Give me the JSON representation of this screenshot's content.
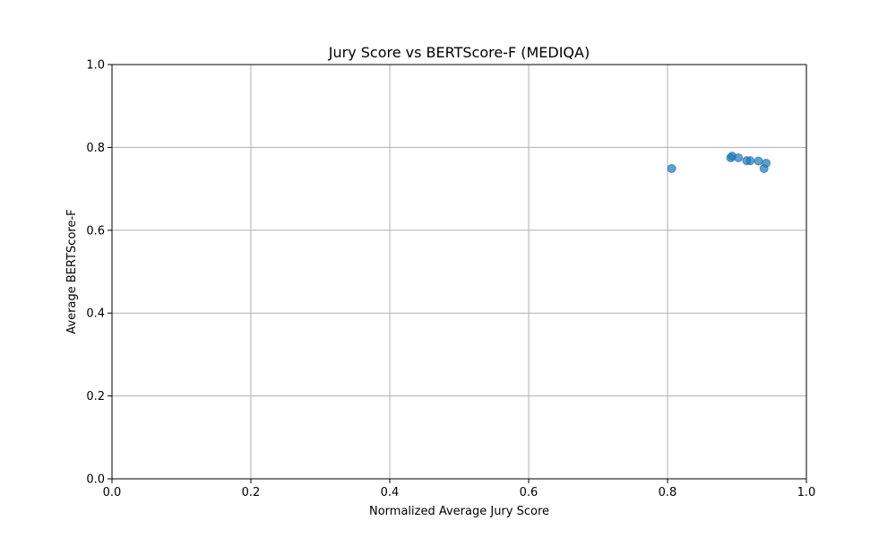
{
  "chart_data": {
    "type": "scatter",
    "title": "Jury Score vs BERTScore-F (MEDIQA)",
    "xlabel": "Normalized Average Jury Score",
    "ylabel": "Average BERTScore-F",
    "xlim": [
      0.0,
      1.0
    ],
    "ylim": [
      0.0,
      1.0
    ],
    "x_ticks": [
      "0.0",
      "0.2",
      "0.4",
      "0.6",
      "0.8",
      "1.0"
    ],
    "y_ticks": [
      "0.0",
      "0.2",
      "0.4",
      "0.6",
      "0.8",
      "1.0"
    ],
    "grid": true,
    "point_color": "#1f77b4",
    "points": [
      {
        "x": 0.806,
        "y": 0.749
      },
      {
        "x": 0.891,
        "y": 0.775
      },
      {
        "x": 0.893,
        "y": 0.779
      },
      {
        "x": 0.902,
        "y": 0.775
      },
      {
        "x": 0.914,
        "y": 0.768
      },
      {
        "x": 0.919,
        "y": 0.768
      },
      {
        "x": 0.931,
        "y": 0.767
      },
      {
        "x": 0.939,
        "y": 0.749
      },
      {
        "x": 0.942,
        "y": 0.762
      }
    ]
  }
}
